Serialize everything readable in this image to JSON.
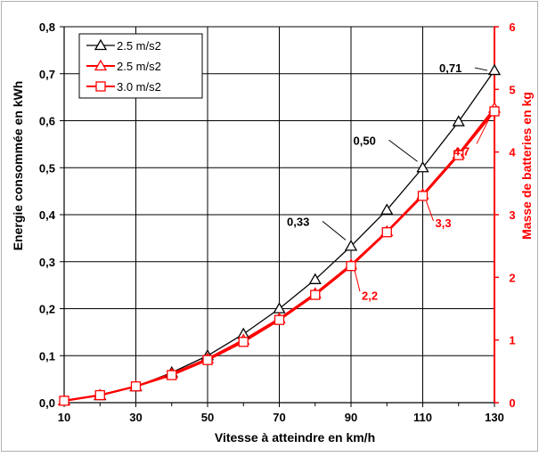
{
  "chart_data": {
    "type": "line",
    "title": "",
    "xlabel": "Vitesse à atteindre en km/h",
    "ylabel": "Energie consommée en kWh",
    "y2label": "Masse de batteries en kg",
    "xlim": [
      10,
      130
    ],
    "ylim": [
      0,
      0.8
    ],
    "y2lim": [
      0,
      6
    ],
    "x_ticks": [
      "10",
      "30",
      "50",
      "70",
      "90",
      "110",
      "130"
    ],
    "y_ticks": [
      "0,0",
      "0,1",
      "0,2",
      "0,3",
      "0,4",
      "0,5",
      "0,6",
      "0,7",
      "0,8"
    ],
    "y2_ticks": [
      "0",
      "1",
      "2",
      "3",
      "4",
      "5",
      "6"
    ],
    "grid": true,
    "legend_position": "top-left",
    "x": [
      10,
      20,
      30,
      40,
      50,
      60,
      70,
      80,
      90,
      100,
      110,
      120,
      130
    ],
    "series": [
      {
        "name": "2.5 m/s2",
        "axis": "left",
        "color": "#000000",
        "marker": "triangle",
        "values": [
          0.004,
          0.015,
          0.034,
          0.064,
          0.1,
          0.146,
          0.2,
          0.262,
          0.333,
          0.41,
          0.5,
          0.598,
          0.707
        ]
      },
      {
        "name": "2.5 m/s2",
        "axis": "right",
        "color": "#ff0000",
        "marker": "triangle",
        "values": [
          0.03,
          0.12,
          0.26,
          0.46,
          0.7,
          1.0,
          1.34,
          1.74,
          2.2,
          2.73,
          3.32,
          3.97,
          4.7
        ]
      },
      {
        "name": "3.0 m/s2",
        "axis": "right",
        "color": "#ff0000",
        "marker": "square",
        "values": [
          0.03,
          0.12,
          0.26,
          0.44,
          0.68,
          0.97,
          1.32,
          1.72,
          2.18,
          2.72,
          3.3,
          3.95,
          4.65
        ]
      }
    ],
    "annotations": [
      {
        "text": "0,71",
        "x": 130,
        "y": 0.707,
        "axis": "left",
        "color": "#000000"
      },
      {
        "text": "0,50",
        "x": 110,
        "y": 0.5,
        "axis": "left",
        "color": "#000000"
      },
      {
        "text": "0,33",
        "x": 90,
        "y": 0.333,
        "axis": "left",
        "color": "#000000"
      },
      {
        "text": "4,7",
        "x": 130,
        "y": 4.7,
        "axis": "right",
        "color": "#ff0000"
      },
      {
        "text": "3,3",
        "x": 110,
        "y": 3.3,
        "axis": "right",
        "color": "#ff0000"
      },
      {
        "text": "2,2",
        "x": 90,
        "y": 2.2,
        "axis": "right",
        "color": "#ff0000"
      }
    ]
  }
}
